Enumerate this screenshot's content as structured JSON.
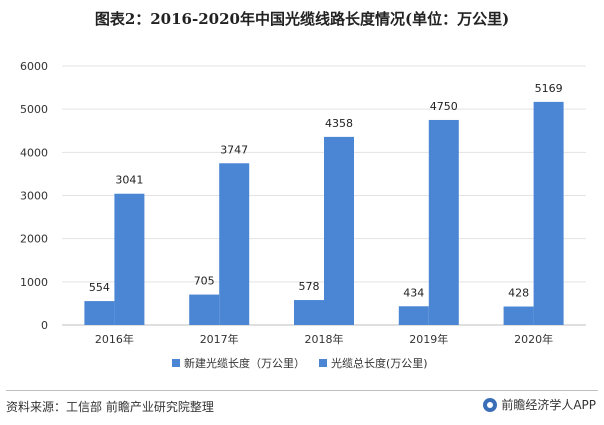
{
  "title": "图表2：2016-2020年中国光缆线路长度情况(单位：万公里)",
  "chart_data": {
    "type": "bar",
    "categories": [
      "2016年",
      "2017年",
      "2018年",
      "2019年",
      "2020年"
    ],
    "series": [
      {
        "name": "新建光缆长度（万公里）",
        "values": [
          554,
          705,
          578,
          434,
          428
        ],
        "color": "#4a86d4"
      },
      {
        "name": "光缆总长度(万公里)",
        "values": [
          3041,
          3747,
          4358,
          4750,
          5169
        ],
        "color": "#4a86d4"
      }
    ],
    "ylim": [
      0,
      6000
    ],
    "yticks": [
      0,
      1000,
      2000,
      3000,
      4000,
      5000,
      6000
    ],
    "grid": true,
    "legend_position": "bottom",
    "data_labels": true
  },
  "footer": {
    "source": "资料来源：工信部 前瞻产业研究院整理",
    "brand": "前瞻经济学人APP"
  }
}
